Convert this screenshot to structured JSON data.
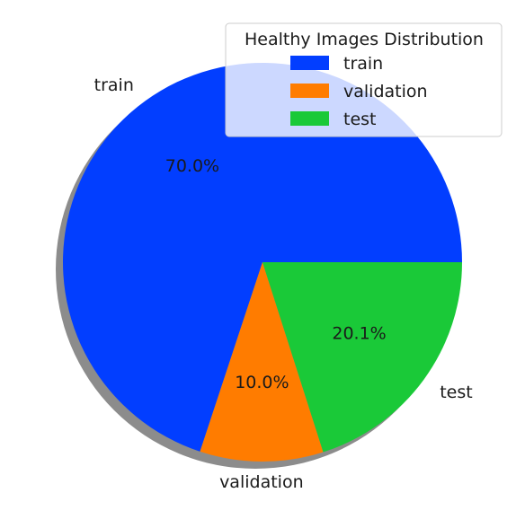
{
  "chart_data": {
    "type": "pie",
    "title": "",
    "legend": {
      "title": "Healthy Images Distribution",
      "placement": "top-right"
    },
    "slices": [
      {
        "label": "train",
        "value": 70.0,
        "pct_label": "70.0%",
        "color": "#023EFF"
      },
      {
        "label": "validation",
        "value": 10.0,
        "pct_label": "10.0%",
        "color": "#FF7C00"
      },
      {
        "label": "test",
        "value": 20.1,
        "pct_label": "20.1%",
        "color": "#1AC938"
      }
    ],
    "start_angle_deg": 0,
    "direction": "counterclockwise",
    "shadow": true
  }
}
